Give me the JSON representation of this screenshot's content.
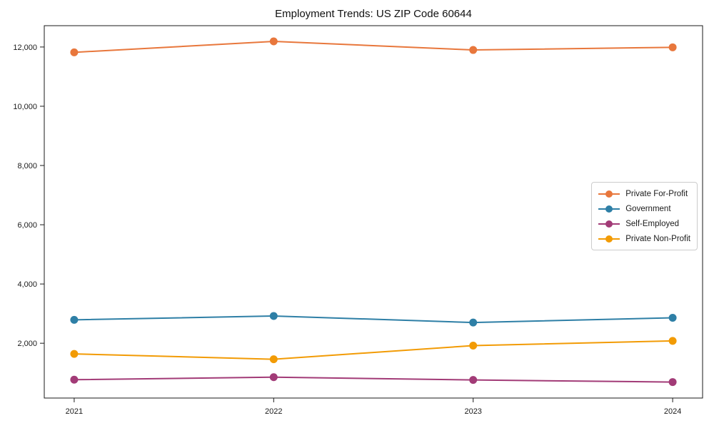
{
  "chart_data": {
    "type": "line",
    "title": "Employment Trends: US ZIP Code 60644",
    "categories": [
      "2021",
      "2022",
      "2023",
      "2024"
    ],
    "x": [
      2021,
      2022,
      2023,
      2024
    ],
    "series": [
      {
        "name": "Private For-Profit",
        "color": "#E8773C",
        "values": [
          11820,
          12190,
          11900,
          11990
        ]
      },
      {
        "name": "Government",
        "color": "#2E7FA6",
        "values": [
          2790,
          2920,
          2700,
          2860
        ]
      },
      {
        "name": "Self-Employed",
        "color": "#A23B77",
        "values": [
          770,
          855,
          760,
          690
        ]
      },
      {
        "name": "Private Non-Profit",
        "color": "#F29B05",
        "values": [
          1640,
          1460,
          1920,
          2080
        ]
      }
    ],
    "xlabel": "",
    "ylabel": "",
    "xlim": [
      2020.85,
      2024.15
    ],
    "ylim": [
      150,
      12720
    ],
    "yticks": [
      2000,
      4000,
      6000,
      8000,
      10000,
      12000
    ],
    "ytick_labels": [
      "2,000",
      "4,000",
      "6,000",
      "8,000",
      "10,000",
      "12,000"
    ],
    "grid": false,
    "legend_position": "center right",
    "marker": "circle",
    "line_width": 2,
    "axis_color": "#1a1a1a",
    "background": "#ffffff"
  }
}
